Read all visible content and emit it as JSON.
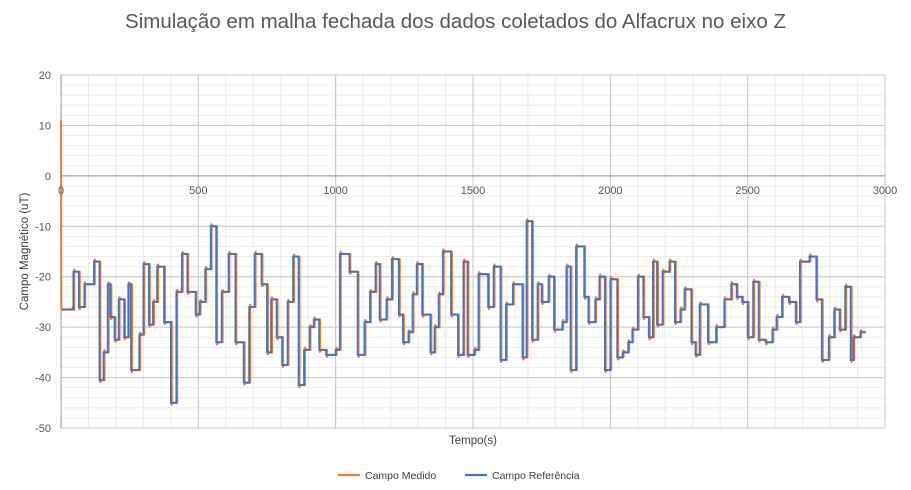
{
  "chart_data": {
    "type": "line",
    "title": "Simulação em malha fechada dos dados coletados do Alfacrux no eixo Z",
    "xlabel": "Tempo(s)",
    "ylabel": "Campo Magnético (uT)",
    "xlim": [
      0,
      3000
    ],
    "ylim": [
      -50,
      20
    ],
    "xticks": [
      "0",
      "500",
      "1000",
      "1500",
      "2000",
      "2500",
      "3000"
    ],
    "yticks": [
      "20",
      "10",
      "0",
      "-10",
      "-20",
      "-30",
      "-40",
      "-50"
    ],
    "grid": "major and minor",
    "legend_position": "bottom",
    "series": [
      {
        "name": "Campo Medido",
        "color": "#ED7D31",
        "initial_transient": {
          "x": [
            0,
            1,
            4
          ],
          "y": [
            11,
            -26,
            -26.5
          ]
        },
        "lag": 3,
        "overshoot": 0.4
      },
      {
        "name": "Campo Referência",
        "color": "#4472C4"
      }
    ],
    "steps": [
      [
        0,
        -26.5
      ],
      [
        40,
        -26.5
      ],
      [
        45,
        -19
      ],
      [
        65,
        -26
      ],
      [
        85,
        -21.5
      ],
      [
        120,
        -17
      ],
      [
        140,
        -40.5
      ],
      [
        155,
        -35
      ],
      [
        170,
        -21.5
      ],
      [
        180,
        -28
      ],
      [
        195,
        -32.5
      ],
      [
        210,
        -24.5
      ],
      [
        230,
        -32
      ],
      [
        245,
        -21.5
      ],
      [
        255,
        -38.5
      ],
      [
        285,
        -31.5
      ],
      [
        300,
        -17.5
      ],
      [
        320,
        -29.5
      ],
      [
        335,
        -25
      ],
      [
        350,
        -18
      ],
      [
        375,
        -29
      ],
      [
        400,
        -45
      ],
      [
        420,
        -23
      ],
      [
        440,
        -15.5
      ],
      [
        460,
        -23
      ],
      [
        490,
        -27.5
      ],
      [
        505,
        -25
      ],
      [
        525,
        -18.5
      ],
      [
        545,
        -10
      ],
      [
        565,
        -33
      ],
      [
        585,
        -23
      ],
      [
        610,
        -15.5
      ],
      [
        635,
        -33
      ],
      [
        665,
        -41
      ],
      [
        685,
        -26
      ],
      [
        705,
        -15.5
      ],
      [
        730,
        -21.5
      ],
      [
        750,
        -35
      ],
      [
        765,
        -24.5
      ],
      [
        785,
        -32
      ],
      [
        805,
        -37.5
      ],
      [
        825,
        -25
      ],
      [
        845,
        -16
      ],
      [
        865,
        -41.5
      ],
      [
        885,
        -34.5
      ],
      [
        905,
        -30
      ],
      [
        920,
        -28.5
      ],
      [
        940,
        -34.5
      ],
      [
        965,
        -35.5
      ],
      [
        1000,
        -34.5
      ],
      [
        1015,
        -15.5
      ],
      [
        1050,
        -19
      ],
      [
        1080,
        -35.5
      ],
      [
        1105,
        -29
      ],
      [
        1125,
        -23
      ],
      [
        1145,
        -17.5
      ],
      [
        1160,
        -28.5
      ],
      [
        1185,
        -24.5
      ],
      [
        1205,
        -16.5
      ],
      [
        1230,
        -27.5
      ],
      [
        1245,
        -33
      ],
      [
        1265,
        -31
      ],
      [
        1280,
        -23.5
      ],
      [
        1295,
        -17.5
      ],
      [
        1315,
        -27.5
      ],
      [
        1345,
        -35
      ],
      [
        1360,
        -30
      ],
      [
        1375,
        -23.5
      ],
      [
        1390,
        -15
      ],
      [
        1420,
        -27.5
      ],
      [
        1445,
        -35.5
      ],
      [
        1465,
        -17
      ],
      [
        1480,
        -35.5
      ],
      [
        1505,
        -34.5
      ],
      [
        1520,
        -19.5
      ],
      [
        1555,
        -26
      ],
      [
        1575,
        -18
      ],
      [
        1600,
        -36.5
      ],
      [
        1620,
        -25.5
      ],
      [
        1645,
        -21.5
      ],
      [
        1680,
        -36
      ],
      [
        1695,
        -9
      ],
      [
        1715,
        -32.5
      ],
      [
        1735,
        -21.5
      ],
      [
        1750,
        -25
      ],
      [
        1775,
        -20
      ],
      [
        1795,
        -30.5
      ],
      [
        1825,
        -29
      ],
      [
        1840,
        -18
      ],
      [
        1855,
        -38.5
      ],
      [
        1875,
        -14
      ],
      [
        1905,
        -24
      ],
      [
        1920,
        -29
      ],
      [
        1945,
        -24.5
      ],
      [
        1960,
        -20
      ],
      [
        1980,
        -38.5
      ],
      [
        2000,
        -20.5
      ],
      [
        2025,
        -36
      ],
      [
        2045,
        -35
      ],
      [
        2065,
        -33
      ],
      [
        2080,
        -30.5
      ],
      [
        2100,
        -20
      ],
      [
        2120,
        -28
      ],
      [
        2140,
        -32
      ],
      [
        2155,
        -17
      ],
      [
        2170,
        -29.5
      ],
      [
        2190,
        -19
      ],
      [
        2215,
        -17
      ],
      [
        2235,
        -29
      ],
      [
        2255,
        -26.5
      ],
      [
        2270,
        -22.5
      ],
      [
        2295,
        -33
      ],
      [
        2310,
        -35.5
      ],
      [
        2325,
        -25.5
      ],
      [
        2355,
        -33
      ],
      [
        2385,
        -30
      ],
      [
        2415,
        -24.5
      ],
      [
        2440,
        -21.5
      ],
      [
        2460,
        -24
      ],
      [
        2480,
        -25
      ],
      [
        2500,
        -32
      ],
      [
        2520,
        -21
      ],
      [
        2540,
        -32.5
      ],
      [
        2565,
        -33
      ],
      [
        2590,
        -30.5
      ],
      [
        2605,
        -28
      ],
      [
        2625,
        -24
      ],
      [
        2650,
        -25
      ],
      [
        2675,
        -29
      ],
      [
        2690,
        -17
      ],
      [
        2725,
        -16
      ],
      [
        2750,
        -24.5
      ],
      [
        2770,
        -36.5
      ],
      [
        2795,
        -32
      ],
      [
        2815,
        -26.5
      ],
      [
        2835,
        -30.5
      ],
      [
        2855,
        -22
      ],
      [
        2875,
        -36.5
      ],
      [
        2885,
        -32
      ],
      [
        2910,
        -31
      ],
      [
        2930,
        -31
      ]
    ]
  },
  "legend": {
    "items": [
      {
        "label": "Campo Medido",
        "color": "#ED7D31"
      },
      {
        "label": "Campo Referência",
        "color": "#4472C4"
      }
    ]
  }
}
